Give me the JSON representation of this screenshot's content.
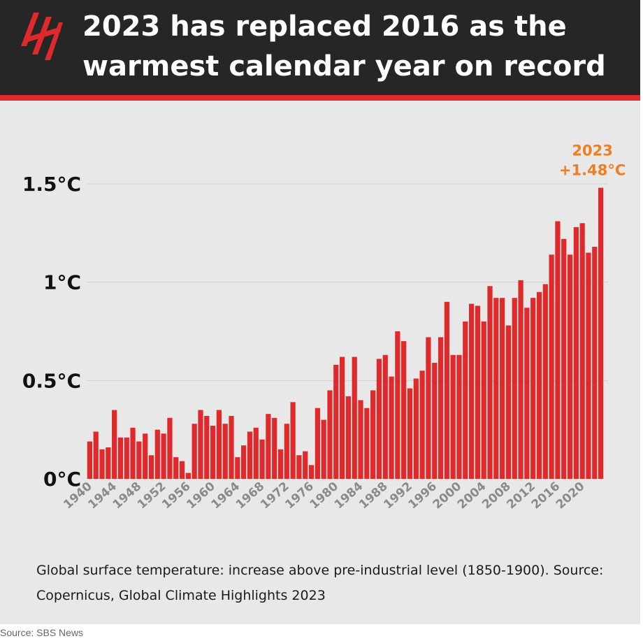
{
  "header": {
    "title": "2023 has replaced 2016 as the\nwarmest calendar year on record",
    "logo": "sbs-logo"
  },
  "chart_data": {
    "type": "bar",
    "categories": [
      "1940",
      "1941",
      "1942",
      "1943",
      "1944",
      "1945",
      "1946",
      "1947",
      "1948",
      "1949",
      "1950",
      "1951",
      "1952",
      "1953",
      "1954",
      "1955",
      "1956",
      "1957",
      "1958",
      "1959",
      "1960",
      "1961",
      "1962",
      "1963",
      "1964",
      "1965",
      "1966",
      "1967",
      "1968",
      "1969",
      "1970",
      "1971",
      "1972",
      "1973",
      "1974",
      "1975",
      "1976",
      "1977",
      "1978",
      "1979",
      "1980",
      "1981",
      "1982",
      "1983",
      "1984",
      "1985",
      "1986",
      "1987",
      "1988",
      "1989",
      "1990",
      "1991",
      "1992",
      "1993",
      "1994",
      "1995",
      "1996",
      "1997",
      "1998",
      "1999",
      "2000",
      "2001",
      "2002",
      "2003",
      "2004",
      "2005",
      "2006",
      "2007",
      "2008",
      "2009",
      "2010",
      "2011",
      "2012",
      "2013",
      "2014",
      "2015",
      "2016",
      "2017",
      "2018",
      "2019",
      "2020",
      "2021",
      "2022",
      "2023"
    ],
    "x_tick_labels": [
      "1940",
      "1944",
      "1948",
      "1952",
      "1956",
      "1960",
      "1964",
      "1968",
      "1972",
      "1976",
      "1980",
      "1984",
      "1988",
      "1992",
      "1996",
      "2000",
      "2004",
      "2008",
      "2012",
      "2016",
      "2020"
    ],
    "values": [
      0.19,
      0.24,
      0.15,
      0.16,
      0.35,
      0.21,
      0.21,
      0.26,
      0.19,
      0.23,
      0.12,
      0.25,
      0.23,
      0.31,
      0.11,
      0.09,
      0.03,
      0.28,
      0.35,
      0.32,
      0.27,
      0.35,
      0.28,
      0.32,
      0.11,
      0.17,
      0.24,
      0.26,
      0.2,
      0.33,
      0.31,
      0.15,
      0.28,
      0.39,
      0.12,
      0.14,
      0.07,
      0.36,
      0.3,
      0.45,
      0.58,
      0.62,
      0.42,
      0.62,
      0.4,
      0.36,
      0.45,
      0.61,
      0.63,
      0.52,
      0.75,
      0.7,
      0.46,
      0.51,
      0.55,
      0.72,
      0.59,
      0.72,
      0.9,
      0.63,
      0.63,
      0.8,
      0.89,
      0.88,
      0.8,
      0.98,
      0.92,
      0.92,
      0.78,
      0.92,
      1.01,
      0.87,
      0.92,
      0.95,
      0.99,
      1.14,
      1.31,
      1.22,
      1.14,
      1.28,
      1.3,
      1.15,
      1.18,
      1.48
    ],
    "y_ticks": [
      "0°C",
      "0.5°C",
      "1°C",
      "1.5°C"
    ],
    "ylim": [
      0,
      1.5
    ],
    "bar_color": "#e0292b",
    "highlight": {
      "year": "2023",
      "label_year": "2023",
      "label_value": "+1.48°C",
      "color": "#ef7d22"
    },
    "grid": true
  },
  "caption": "Global surface temperature: increase above pre-industrial level (1850-1900). Source: Copernicus, Global Climate Highlights 2023",
  "source": "Source: SBS News"
}
